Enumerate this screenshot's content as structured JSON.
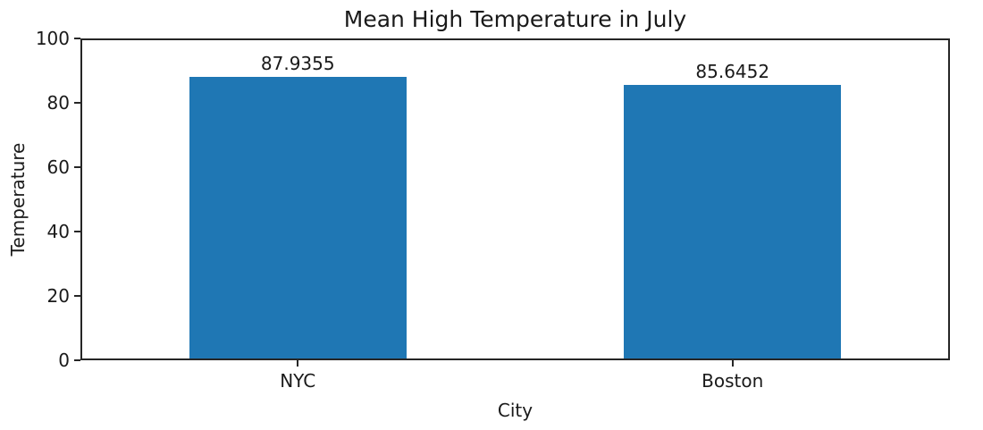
{
  "chart_data": {
    "type": "bar",
    "title": "Mean High Temperature in July",
    "xlabel": "City",
    "ylabel": "Temperature",
    "categories": [
      "NYC",
      "Boston"
    ],
    "values": [
      87.9355,
      85.6452
    ],
    "value_labels": [
      "87.9355",
      "85.6452"
    ],
    "ylim": [
      0,
      100
    ],
    "yticks": [
      0,
      20,
      40,
      60,
      80,
      100
    ],
    "bar_color": "#1f77b4",
    "text_color": "#1a1a1a",
    "axis_color": "#262626",
    "background_color": "#ffffff",
    "grid": false,
    "legend": "none",
    "bar_width_fraction": 0.25
  }
}
